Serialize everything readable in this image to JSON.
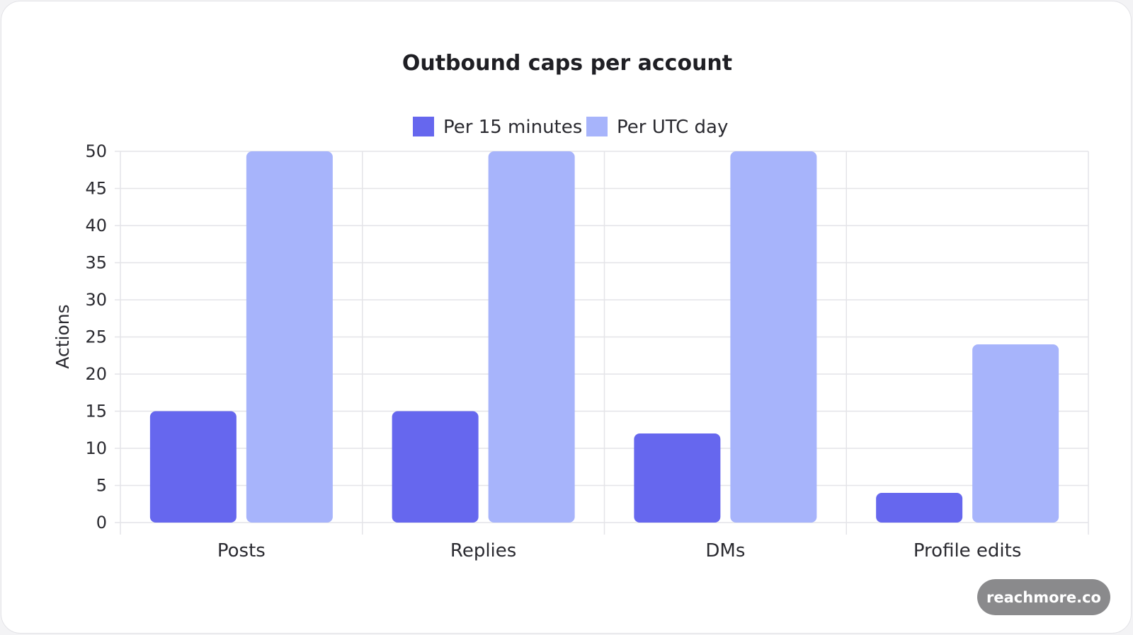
{
  "colors": {
    "series_1": "#6667ee",
    "series_2": "#a7b4fb",
    "grid": "#e4e4e8",
    "text": "#2a2a30",
    "watermark_bg": "#8a8a8c"
  },
  "watermark": {
    "text": "reachmore.co"
  },
  "chart_data": {
    "type": "bar",
    "title": "Outbound caps per account",
    "xlabel": "",
    "ylabel": "Actions",
    "categories": [
      "Posts",
      "Replies",
      "DMs",
      "Profile edits"
    ],
    "series": [
      {
        "name": "Per 15 minutes",
        "values": [
          15,
          15,
          12,
          4
        ]
      },
      {
        "name": "Per UTC day",
        "values": [
          50,
          50,
          50,
          24
        ]
      }
    ],
    "ylim": [
      0,
      50
    ],
    "yticks": [
      0,
      5,
      10,
      15,
      20,
      25,
      30,
      35,
      40,
      45,
      50
    ],
    "grid": true,
    "legend_position": "top-center"
  }
}
